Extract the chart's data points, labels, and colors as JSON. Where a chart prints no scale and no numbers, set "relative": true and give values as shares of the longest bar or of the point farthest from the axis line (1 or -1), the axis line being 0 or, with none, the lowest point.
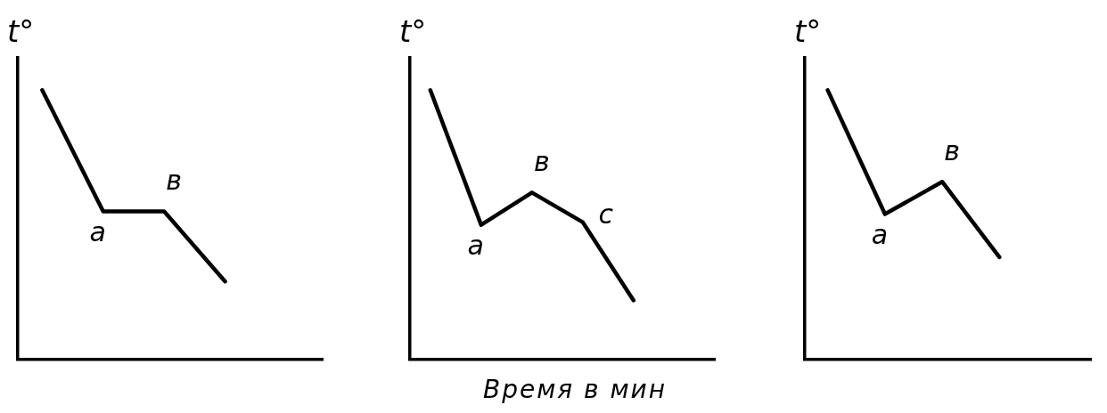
{
  "chart_data": [
    {
      "type": "line",
      "ylabel": "t°",
      "relative": true,
      "categories": [
        null,
        null,
        null,
        null
      ],
      "values": [
        1,
        0.55,
        0.55,
        0.29
      ],
      "color": "#000000",
      "annotations": [
        "а",
        "в"
      ]
    },
    {
      "type": "line",
      "ylabel": "t°",
      "xlabel": "Время в мин",
      "relative": true,
      "categories": [
        null,
        null,
        null,
        null,
        null
      ],
      "values": [
        1,
        0.5,
        0.62,
        0.51,
        0.22
      ],
      "color": "#000000",
      "annotations": [
        "а",
        "в",
        "с"
      ]
    },
    {
      "type": "line",
      "ylabel": "t°",
      "relative": true,
      "categories": [
        null,
        null,
        null,
        null
      ],
      "values": [
        1,
        0.54,
        0.66,
        0.38
      ],
      "color": "#000000",
      "annotations": [
        "а",
        "в"
      ]
    }
  ]
}
